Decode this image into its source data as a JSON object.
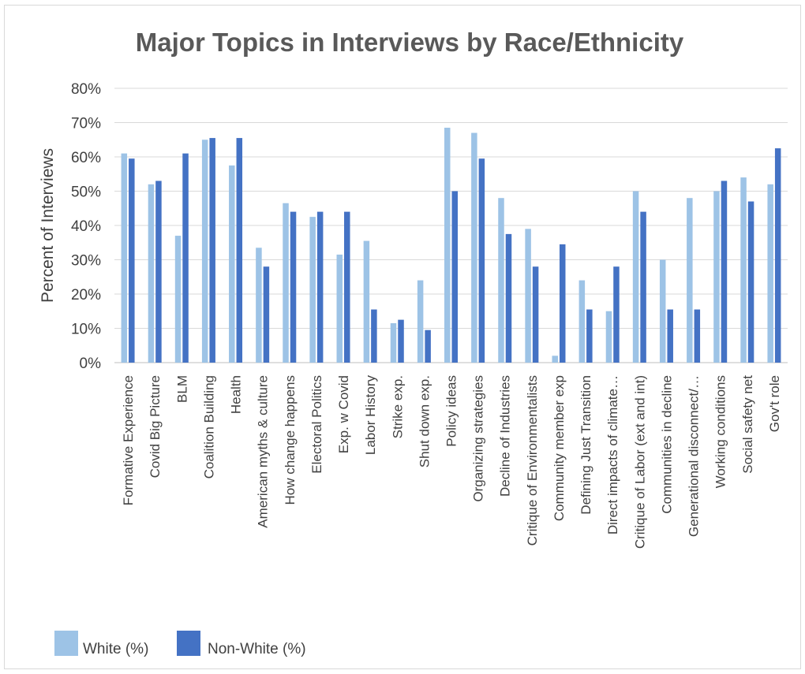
{
  "chart_data": {
    "type": "bar",
    "title": "Major Topics in Interviews by Race/Ethnicity",
    "ylabel": "Percent of Interviews",
    "xlabel": "",
    "ylim": [
      0,
      80
    ],
    "yticks": [
      "0%",
      "10%",
      "20%",
      "30%",
      "40%",
      "50%",
      "60%",
      "70%",
      "80%"
    ],
    "grid": true,
    "legend_position": "bottom-left",
    "categories": [
      "Formative Experience",
      "Covid Big Picture",
      "BLM",
      "Coalition Building",
      "Health",
      "American myths & culture",
      "How change happens",
      "Electoral Politics",
      "Exp. w Covid",
      "Labor History",
      "Strike exp.",
      "Shut down exp.",
      "Policy ideas",
      "Organizing strategies",
      "Decline of Industries",
      "Critique of Environmentalists",
      "Community member exp",
      "Defining Just Transition",
      "Direct impacts of climate…",
      "Critique of Labor (ext and int)",
      "Communities in decline",
      "Generational disconnect/…",
      "Working conditions",
      "Social safety net",
      "Gov't role"
    ],
    "series": [
      {
        "name": "White (%)",
        "color": "#9dc3e6",
        "values": [
          61,
          52,
          37,
          65,
          57.5,
          33.5,
          46.5,
          42.5,
          31.5,
          35.5,
          11.5,
          24,
          68.5,
          67,
          48,
          39,
          2,
          24,
          15,
          50,
          30,
          48,
          50,
          54,
          52
        ]
      },
      {
        "name": "Non-White (%)",
        "color": "#4472c4",
        "values": [
          59.5,
          53,
          61,
          65.5,
          65.5,
          28,
          44,
          44,
          44,
          15.5,
          12.5,
          9.5,
          50,
          59.5,
          37.5,
          28,
          34.5,
          15.5,
          28,
          44,
          15.5,
          15.5,
          53,
          47,
          62.5
        ]
      }
    ]
  }
}
